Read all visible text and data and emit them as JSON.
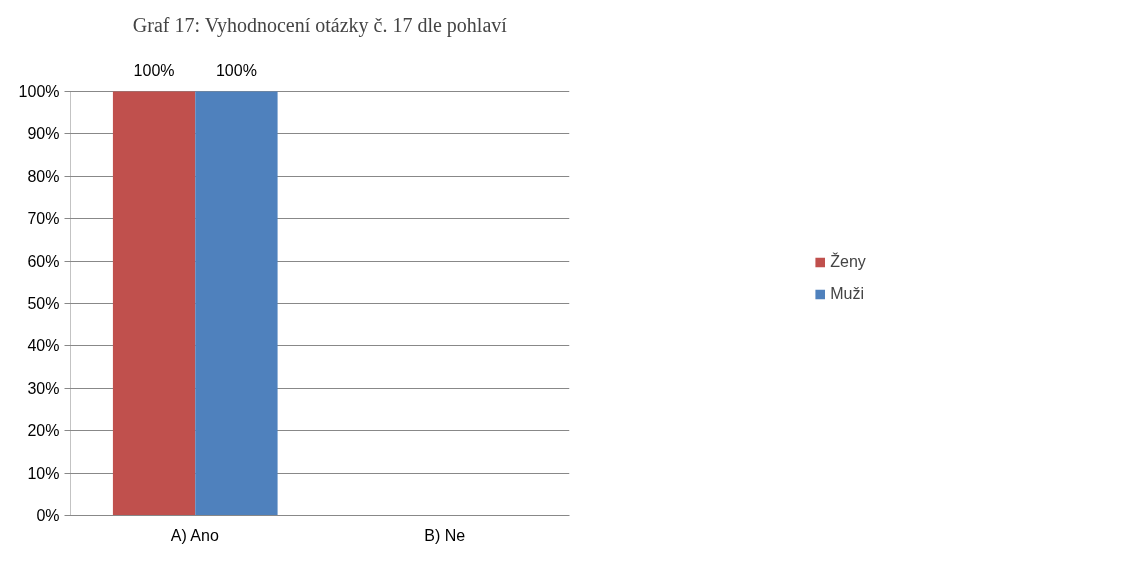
{
  "chart_data": {
    "type": "bar",
    "title": "Graf 17: Vyhodnocení otázky č. 17 dle pohlaví",
    "categories": [
      "A) Ano",
      "B) Ne"
    ],
    "series": [
      {
        "name": "Ženy",
        "color": "#c0504d",
        "values": [
          100,
          0
        ],
        "value_labels": [
          "100%",
          null
        ]
      },
      {
        "name": "Muži",
        "color": "#4f81bd",
        "values": [
          100,
          0
        ],
        "value_labels": [
          "100%",
          null
        ]
      }
    ],
    "ylim": [
      0,
      100
    ],
    "yticks": [
      {
        "value": 0,
        "label": "0%"
      },
      {
        "value": 10,
        "label": "10%"
      },
      {
        "value": 20,
        "label": "20%"
      },
      {
        "value": 30,
        "label": "30%"
      },
      {
        "value": 40,
        "label": "40%"
      },
      {
        "value": 50,
        "label": "50%"
      },
      {
        "value": 60,
        "label": "60%"
      },
      {
        "value": 70,
        "label": "70%"
      },
      {
        "value": 80,
        "label": "80%"
      },
      {
        "value": 90,
        "label": "90%"
      },
      {
        "value": 100,
        "label": "100%"
      }
    ],
    "grid": "y",
    "legend": "right"
  }
}
